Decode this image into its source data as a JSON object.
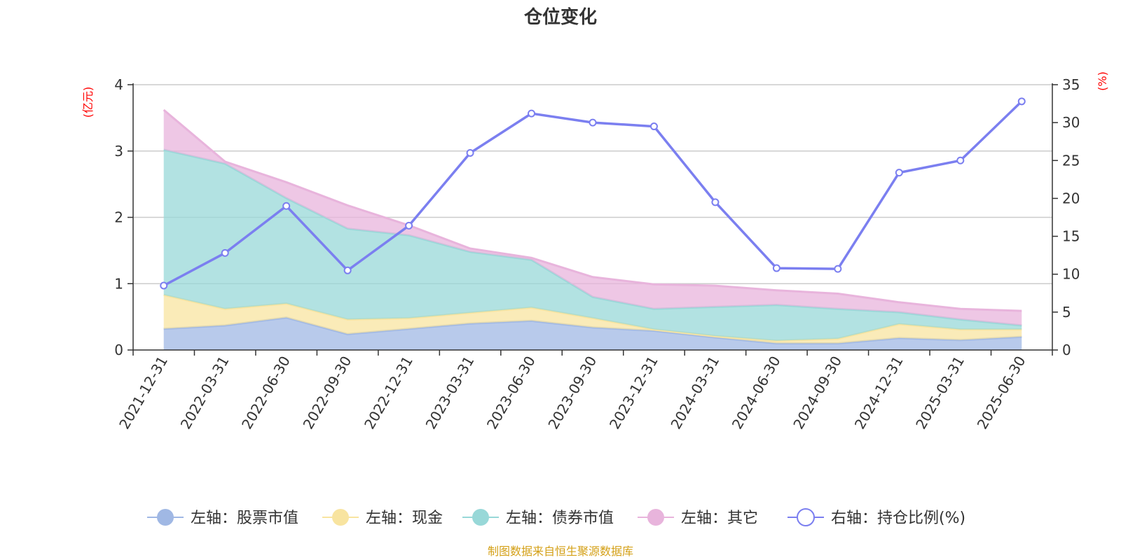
{
  "title": "仓位变化",
  "source": "制图数据来自恒生聚源数据库",
  "colors": {
    "stock": "#a0b8e4",
    "cash": "#f8e4a0",
    "bond": "#98d8d8",
    "other": "#e8b4dc",
    "ratio": "#7b7ff0",
    "axis_unit": "#ff0000",
    "source": "#d4a017"
  },
  "chart_data": {
    "type": "area",
    "title": "仓位变化",
    "categories": [
      "2021-12-31",
      "2022-03-31",
      "2022-06-30",
      "2022-09-30",
      "2022-12-31",
      "2023-03-31",
      "2023-06-30",
      "2023-09-30",
      "2023-12-31",
      "2024-03-31",
      "2024-06-30",
      "2024-09-30",
      "2024-12-31",
      "2025-03-31",
      "2025-06-30"
    ],
    "left_axis": {
      "unit": "(亿元)",
      "ylim": [
        0,
        4
      ],
      "ticks": [
        "0",
        "1",
        "2",
        "3",
        "4"
      ]
    },
    "right_axis": {
      "unit": "(%)",
      "ylim": [
        0,
        35
      ],
      "ticks": [
        "0",
        "5",
        "10",
        "15",
        "20",
        "25",
        "30",
        "35"
      ]
    },
    "grid": true,
    "legend_position": "bottom",
    "stacked": true,
    "series": [
      {
        "name": "左轴：股票市值",
        "axis": "left",
        "type": "area",
        "color_key": "stock",
        "values": [
          0.32,
          0.37,
          0.49,
          0.24,
          0.32,
          0.4,
          0.44,
          0.34,
          0.29,
          0.19,
          0.1,
          0.1,
          0.18,
          0.15,
          0.2
        ]
      },
      {
        "name": "左轴：现金",
        "axis": "left",
        "type": "area",
        "color_key": "cash",
        "values": [
          0.51,
          0.25,
          0.21,
          0.22,
          0.16,
          0.16,
          0.2,
          0.14,
          0.02,
          0.02,
          0.04,
          0.07,
          0.21,
          0.16,
          0.11
        ]
      },
      {
        "name": "左轴：债券市值",
        "axis": "left",
        "type": "area",
        "color_key": "bond",
        "values": [
          2.19,
          2.19,
          1.59,
          1.37,
          1.25,
          0.92,
          0.72,
          0.32,
          0.31,
          0.44,
          0.54,
          0.45,
          0.18,
          0.15,
          0.06
        ]
      },
      {
        "name": "左轴：其它",
        "axis": "left",
        "type": "area",
        "color_key": "other",
        "values": [
          0.6,
          0.03,
          0.24,
          0.35,
          0.15,
          0.05,
          0.03,
          0.3,
          0.37,
          0.32,
          0.22,
          0.23,
          0.15,
          0.16,
          0.22
        ]
      },
      {
        "name": "右轴：持仓比例(%)",
        "axis": "right",
        "type": "line",
        "color_key": "ratio",
        "values": [
          8.5,
          12.8,
          19.0,
          10.5,
          16.4,
          26.0,
          31.2,
          30.0,
          29.5,
          19.5,
          10.8,
          10.7,
          23.4,
          25.0,
          32.8
        ]
      }
    ]
  }
}
